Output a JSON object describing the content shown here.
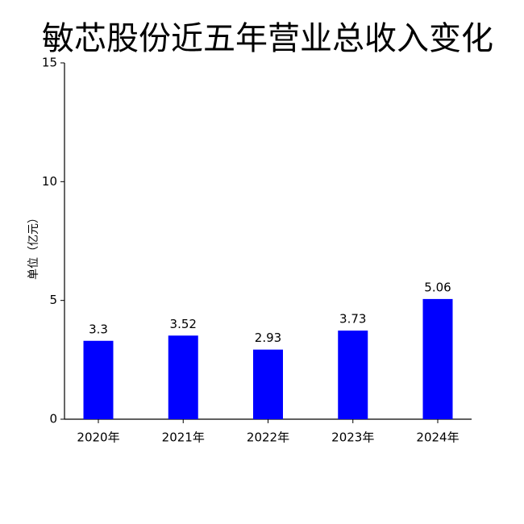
{
  "chart_data": {
    "type": "bar",
    "title": "敏芯股份近五年营业总收入变化",
    "y_label": "单位（亿元）",
    "categories": [
      "2020年",
      "2021年",
      "2022年",
      "2023年",
      "2024年"
    ],
    "values": [
      3.3,
      3.52,
      2.93,
      3.73,
      5.06
    ],
    "color": "#0000ff",
    "ylim": [
      0,
      15
    ],
    "yticks": [
      0,
      5,
      10,
      15
    ],
    "grid": false,
    "data_labels": true
  }
}
